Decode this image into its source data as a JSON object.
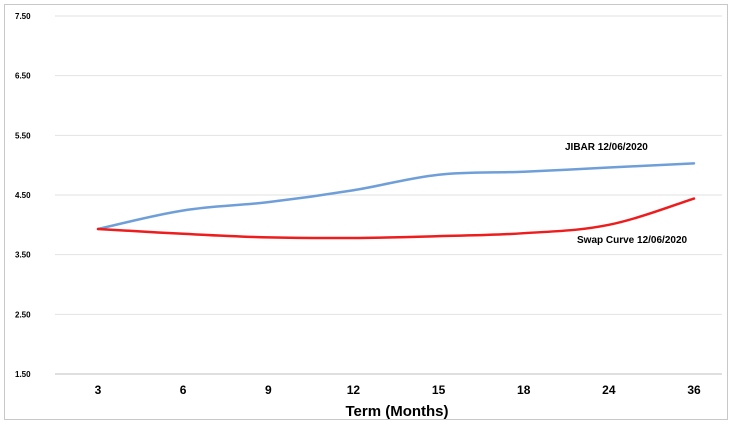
{
  "chart_data": {
    "type": "line",
    "title": "",
    "xlabel": "Term (Months)",
    "ylabel": "",
    "categories": [
      "3",
      "6",
      "9",
      "12",
      "15",
      "18",
      "24",
      "36"
    ],
    "ylim": [
      1.5,
      7.5
    ],
    "yticks": [
      "1.50",
      "2.50",
      "3.50",
      "4.50",
      "5.50",
      "6.50",
      "7.50"
    ],
    "grid": "horizontal",
    "series": [
      {
        "name": "JIBAR  12/06/2020",
        "color": "#6f9fd8",
        "values": [
          3.93,
          4.24,
          4.38,
          4.58,
          4.84,
          4.89,
          4.96,
          5.03
        ]
      },
      {
        "name": "Swap Curve  12/06/2020",
        "color": "#ee1c1c",
        "values": [
          3.93,
          3.85,
          3.79,
          3.78,
          3.81,
          3.86,
          4.0,
          4.44
        ]
      }
    ]
  }
}
